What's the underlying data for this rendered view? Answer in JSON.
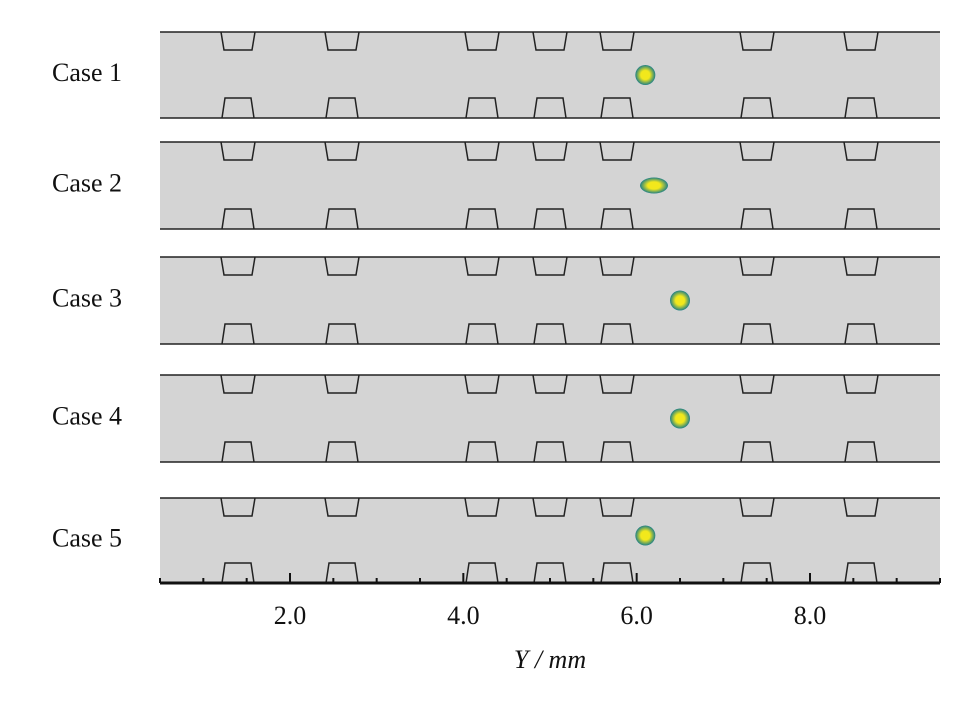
{
  "chart_data": {
    "type": "scatter",
    "categories": [
      "Case 1",
      "Case 2",
      "Case 3",
      "Case 4",
      "Case 5"
    ],
    "x": [
      6.1,
      6.2,
      6.5,
      6.5,
      6.1
    ],
    "xlim": [
      0.5,
      9.5
    ],
    "xticks": [
      {
        "value": 2,
        "label": "2.0"
      },
      {
        "value": 4,
        "label": "4.0"
      },
      {
        "value": 6,
        "label": "6.0"
      },
      {
        "value": 8,
        "label": "8.0"
      }
    ],
    "xminorticks": [
      0.5,
      1,
      1.5,
      2.5,
      3,
      3.5,
      4.5,
      5,
      5.5,
      6.5,
      7,
      7.5,
      8.5,
      9,
      9.5
    ],
    "xlabel": "Y / mm",
    "color": "#1f7f86",
    "center_color": "#f2e81c"
  }
}
